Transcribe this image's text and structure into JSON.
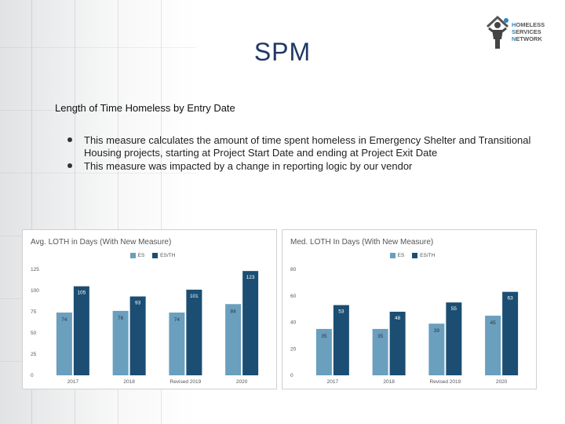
{
  "slide": {
    "title": "SPM",
    "subtitle": "Length of Time Homeless by Entry Date",
    "bullets": [
      "This measure calculates the amount of time spent homeless in Emergency Shelter and Transitional Housing projects, starting at Project Start Date and ending at Project Exit Date",
      "This measure was impacted by a change in reporting logic by our vendor"
    ]
  },
  "logo": {
    "line1": "OMELESS",
    "line2": "ERVICES",
    "line3": "ETWORK",
    "initial1": "H",
    "initial2": "S",
    "initial3": "N",
    "icon": "house-person-icon"
  },
  "colors": {
    "es": "#6a9fbe",
    "esth": "#1b4e72",
    "title": "#1f3864"
  },
  "chart_data": [
    {
      "type": "bar",
      "title": "Avg. LOTH in Days (With New Measure)",
      "categories": [
        "2017",
        "2018",
        "Revised 2019",
        "2020"
      ],
      "series": [
        {
          "name": "ES",
          "values": [
            74,
            76,
            74,
            84
          ]
        },
        {
          "name": "ES/TH",
          "values": [
            105,
            93,
            101,
            123
          ]
        }
      ],
      "ylim": [
        0,
        125
      ],
      "yticks": [
        "0",
        "25",
        "50",
        "75",
        "100",
        "125"
      ],
      "legend": "top-center",
      "grid": false
    },
    {
      "type": "bar",
      "title": "Med. LOTH In Days (With New Measure)",
      "categories": [
        "2017",
        "2018",
        "Revised 2019",
        "2020"
      ],
      "series": [
        {
          "name": "ES",
          "values": [
            35,
            35,
            39,
            45
          ]
        },
        {
          "name": "ES/TH",
          "values": [
            53,
            48,
            55,
            63
          ]
        }
      ],
      "ylim": [
        0,
        80
      ],
      "yticks": [
        "0",
        "20",
        "40",
        "60",
        "80"
      ],
      "legend": "top-center",
      "grid": false
    }
  ]
}
